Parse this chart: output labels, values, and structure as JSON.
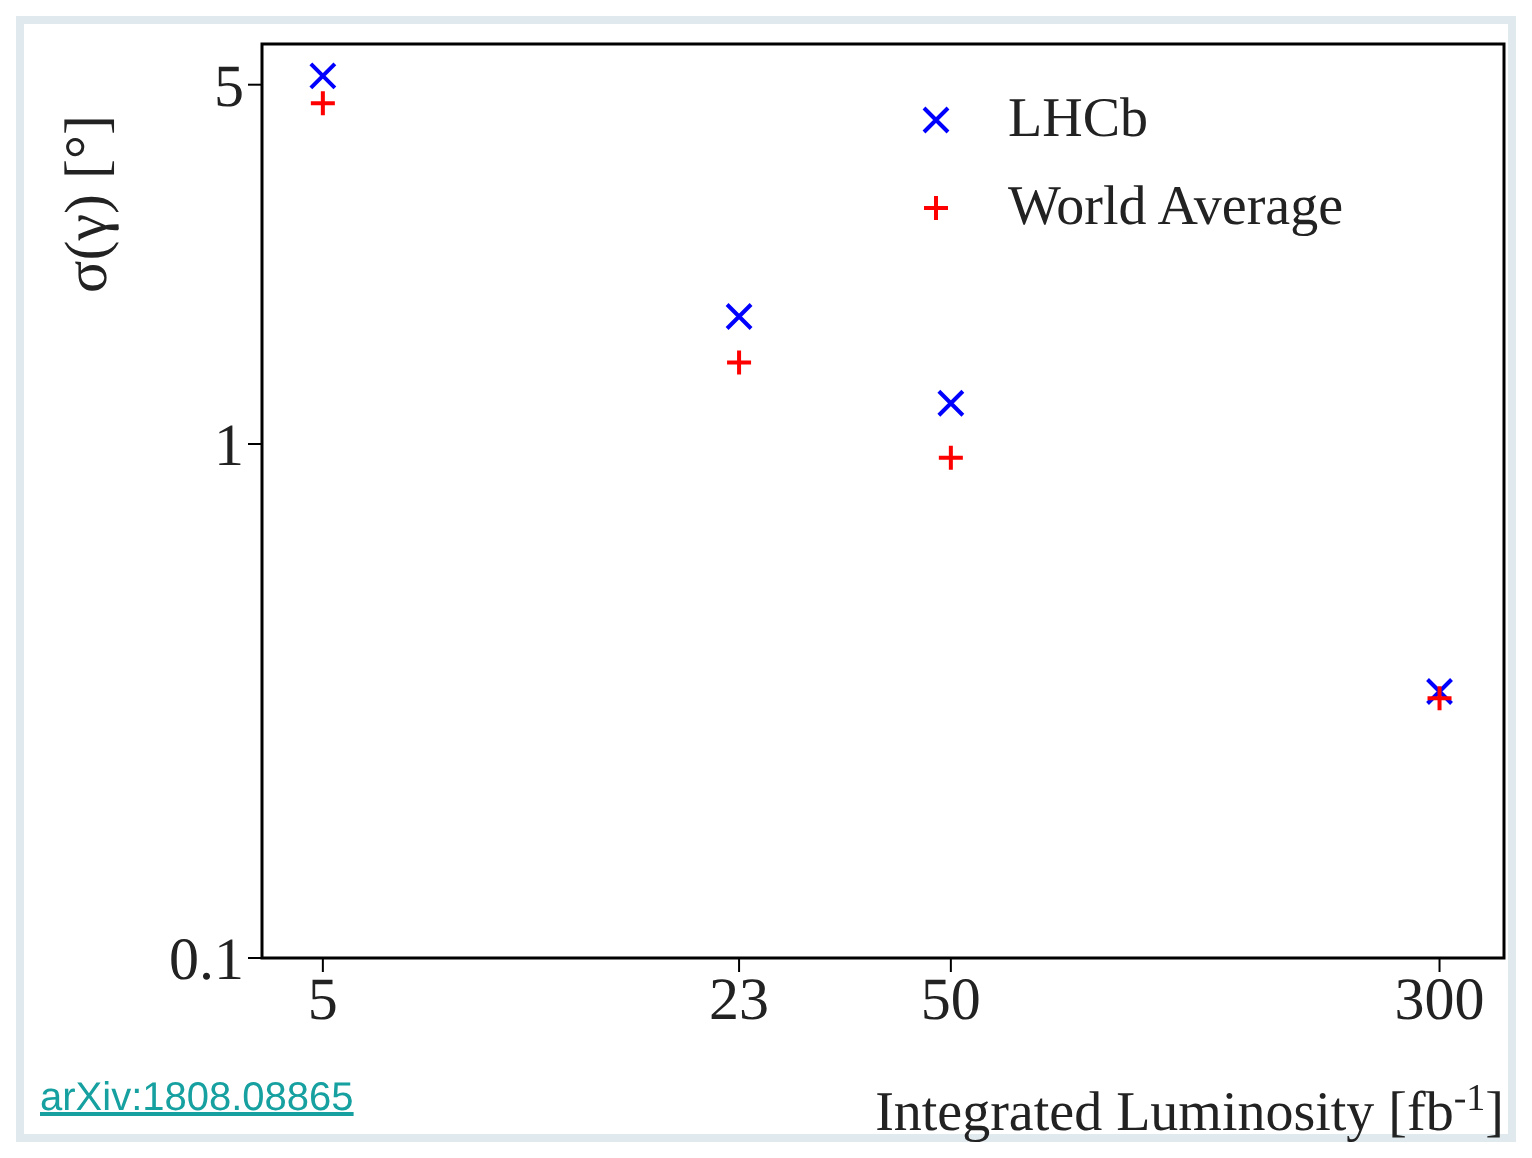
{
  "chart_data": {
    "type": "scatter",
    "xlabel": "Integrated Luminosity [fb$^{-1}$]",
    "ylabel": "σ(γ) [°]",
    "log": "xy",
    "xlim": [
      4,
      380
    ],
    "xticks": [
      5,
      23,
      50,
      300
    ],
    "ylim": [
      0.1,
      6
    ],
    "yticks": [
      0.1,
      1,
      5
    ],
    "grid": false,
    "legend": "top right",
    "x": [
      5,
      23,
      50,
      300
    ],
    "series": [
      {
        "name": "LHCb",
        "color": "#0000ff",
        "marker": "x",
        "values": [
          5.2,
          1.77,
          1.2,
          0.33
        ]
      },
      {
        "name": "World Average",
        "color": "#ff0000",
        "marker": "cross",
        "values": [
          4.6,
          1.44,
          0.94,
          0.32
        ]
      }
    ],
    "annotations": [
      "arXiv:1808.08865"
    ]
  }
}
